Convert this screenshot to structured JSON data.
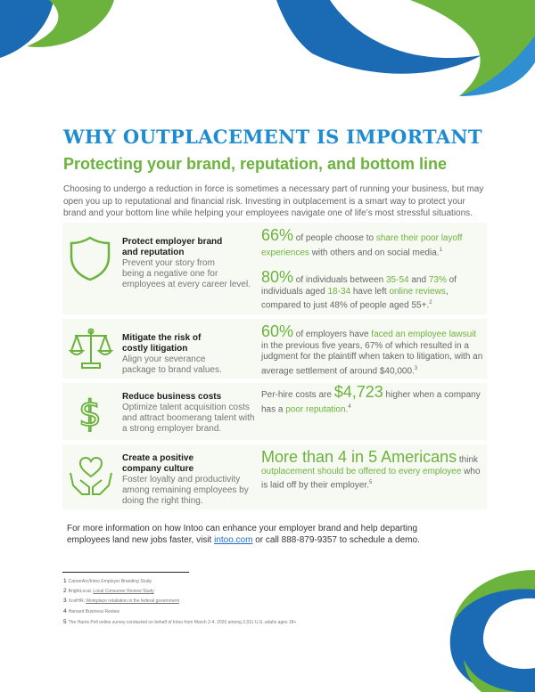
{
  "header": {
    "title": "WHY OUTPLACEMENT IS IMPORTANT",
    "subtitle": "Protecting your brand, reputation, and bottom line"
  },
  "intro": "Choosing to undergo a reduction in force is sometimes a necessary part of running your business, but may open you up to reputational and financial risk. Investing in outplacement is a smart way to protect your brand and your bottom line while helping your employees navigate one of life’s most stressful situations.",
  "rows": [
    {
      "icon": "shield-icon",
      "heading_1": "Protect employer brand",
      "heading_2": "and reputation",
      "desc_1": "Prevent your story from",
      "desc_2": "being a negative one for",
      "desc_3": "employees at every career level."
    },
    {
      "icon": "scales-icon",
      "heading_1": "Mitigate the risk of",
      "heading_2": "costly litigation",
      "desc_1": "Align your severance",
      "desc_2": "package to brand values."
    },
    {
      "icon": "dollar-icon",
      "heading_1": "Reduce business costs",
      "desc_1": "Optimize talent acquisition costs",
      "desc_2": "and attract boomerang talent with",
      "desc_3": "a strong employer brand."
    },
    {
      "icon": "heart-hands-icon",
      "heading_1": "Create a positive",
      "heading_2": "company culture",
      "desc_1": "Foster loyalty and productivity",
      "desc_2": "among remaining employees by",
      "desc_3": "doing the right thing."
    }
  ],
  "stats": {
    "s1": {
      "big": "66%",
      "t1": " of people choose to ",
      "h1": "share their poor layoff experiences",
      "t2": " with others and on social media.",
      "sup": "1"
    },
    "s2": {
      "big": "80%",
      "t1": " of individuals between ",
      "h1": "35-54",
      "t2": " and ",
      "h2": "73%",
      "t3": " of individuals aged ",
      "h3": "18-34",
      "t4": " have left ",
      "h4": "online reviews",
      "t5": ", compared to just 48% of people aged 55+.",
      "sup": "2"
    },
    "s3": {
      "big": "60%",
      "t1": " of employers have ",
      "h1": "faced an employee lawsuit",
      "t2": " in the previous five years, 67% of which resulted in a judgment for the plaintiff when taken to litigation, with an average settlement of around $40,000.",
      "sup": "3"
    },
    "s4": {
      "t0": "Per-hire costs are ",
      "big": "$4,723",
      "t1": " higher when a company has a ",
      "h1": "poor reputation",
      "t2": ".",
      "sup": "4"
    },
    "s5": {
      "big": "More than 4 in 5 Americans",
      "t1": " think ",
      "h1": "outplacement should be offered to every employee",
      "t2": " who is laid off by their employer.",
      "sup": "5"
    }
  },
  "cta": {
    "text_1": "For more information on how Intoo can enhance your employer brand and help departing employees land new jobs faster, visit ",
    "link": "intoo.com",
    "text_2": " or call 888-879-9357 to schedule a demo."
  },
  "footnotes": [
    {
      "num": "1",
      "text": "CareerArc/Intoo Employer Branding Study"
    },
    {
      "num": "2",
      "pre": "BrightLocal, ",
      "link": "Local Consumer Review Study"
    },
    {
      "num": "3",
      "pre": "XcelHR, ",
      "link": "Workplace retaliation in the federal government"
    },
    {
      "num": "4",
      "text": "Harvard Business Review"
    },
    {
      "num": "5",
      "text": "The Harris Poll online survey conducted on behalf of Intoo from March 2-4, 2020 among 2,011 U.S. adults ages 18+"
    }
  ],
  "colors": {
    "blue": "#1f8bd0",
    "green": "#6cb33e",
    "panel": "#f7f9f3"
  }
}
